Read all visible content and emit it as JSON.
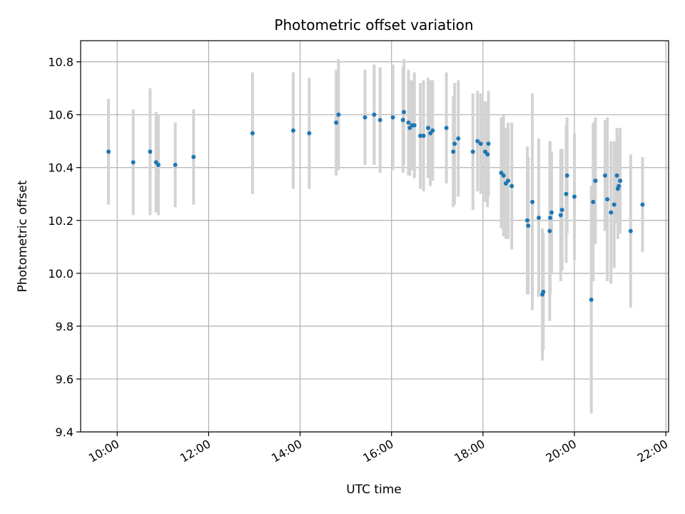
{
  "chart_data": {
    "type": "scatter",
    "title": "Photometric offset variation",
    "xlabel": "UTC time",
    "ylabel": "Photometric offset",
    "xlim": [
      9.2,
      22.06
    ],
    "ylim": [
      9.4,
      10.88
    ],
    "xticks": [
      10,
      12,
      14,
      16,
      18,
      20,
      22
    ],
    "xtick_labels": [
      "10:00",
      "12:00",
      "14:00",
      "16:00",
      "18:00",
      "20:00",
      "22:00"
    ],
    "yticks": [
      9.4,
      9.6,
      9.8,
      10.0,
      10.2,
      10.4,
      10.6,
      10.8
    ],
    "ytick_labels": [
      "9.4",
      "9.6",
      "9.8",
      "10.0",
      "10.2",
      "10.4",
      "10.6",
      "10.8"
    ],
    "grid": true,
    "colors": {
      "point": "#1f77b4",
      "errorbar": "#d3d3d3",
      "grid": "#b0b0b0"
    },
    "series": [
      {
        "x": [
          9.81,
          10.35,
          10.72,
          10.85,
          10.9,
          11.27,
          11.67,
          12.96,
          13.85,
          14.2,
          14.79,
          14.84,
          15.42,
          15.62,
          15.75,
          16.03,
          16.25,
          16.27,
          16.37,
          16.4,
          16.45,
          16.5,
          16.63,
          16.7,
          16.8,
          16.85,
          16.9,
          17.2,
          17.35,
          17.38,
          17.46,
          17.78,
          17.88,
          17.95,
          18.05,
          18.1,
          18.12,
          18.4,
          18.45,
          18.5,
          18.55,
          18.63,
          18.97,
          18.99,
          19.08,
          19.22,
          19.3,
          19.32,
          19.46,
          19.47,
          19.5,
          19.7,
          19.73,
          19.82,
          19.84,
          20.0,
          20.37,
          20.41,
          20.46,
          20.67,
          20.72,
          20.8,
          20.87,
          20.93,
          20.95,
          20.97,
          21.0,
          21.23,
          21.49
        ],
        "y": [
          10.46,
          10.42,
          10.46,
          10.42,
          10.41,
          10.41,
          10.44,
          10.53,
          10.54,
          10.53,
          10.57,
          10.6,
          10.59,
          10.6,
          10.58,
          10.59,
          10.58,
          10.61,
          10.57,
          10.55,
          10.56,
          10.56,
          10.52,
          10.52,
          10.55,
          10.53,
          10.54,
          10.55,
          10.46,
          10.49,
          10.51,
          10.46,
          10.5,
          10.49,
          10.46,
          10.45,
          10.49,
          10.38,
          10.37,
          10.34,
          10.35,
          10.33,
          10.2,
          10.18,
          10.27,
          10.21,
          9.92,
          9.93,
          10.16,
          10.21,
          10.23,
          10.22,
          10.24,
          10.3,
          10.37,
          10.29,
          9.9,
          10.27,
          10.35,
          10.37,
          10.28,
          10.23,
          10.26,
          10.37,
          10.32,
          10.33,
          10.35,
          10.16,
          10.26
        ],
        "yerr": [
          0.2,
          0.2,
          0.24,
          0.19,
          0.19,
          0.16,
          0.18,
          0.23,
          0.22,
          0.21,
          0.2,
          0.21,
          0.18,
          0.19,
          0.2,
          0.2,
          0.2,
          0.2,
          0.2,
          0.18,
          0.17,
          0.2,
          0.2,
          0.21,
          0.19,
          0.2,
          0.19,
          0.21,
          0.21,
          0.23,
          0.22,
          0.22,
          0.19,
          0.19,
          0.19,
          0.2,
          0.2,
          0.21,
          0.23,
          0.21,
          0.22,
          0.24,
          0.28,
          0.26,
          0.41,
          0.3,
          0.25,
          0.22,
          0.34,
          0.29,
          0.23,
          0.25,
          0.23,
          0.26,
          0.22,
          0.24,
          0.43,
          0.3,
          0.24,
          0.21,
          0.31,
          0.27,
          0.24,
          0.18,
          0.19,
          0.18,
          0.2,
          0.29,
          0.18
        ]
      }
    ]
  }
}
